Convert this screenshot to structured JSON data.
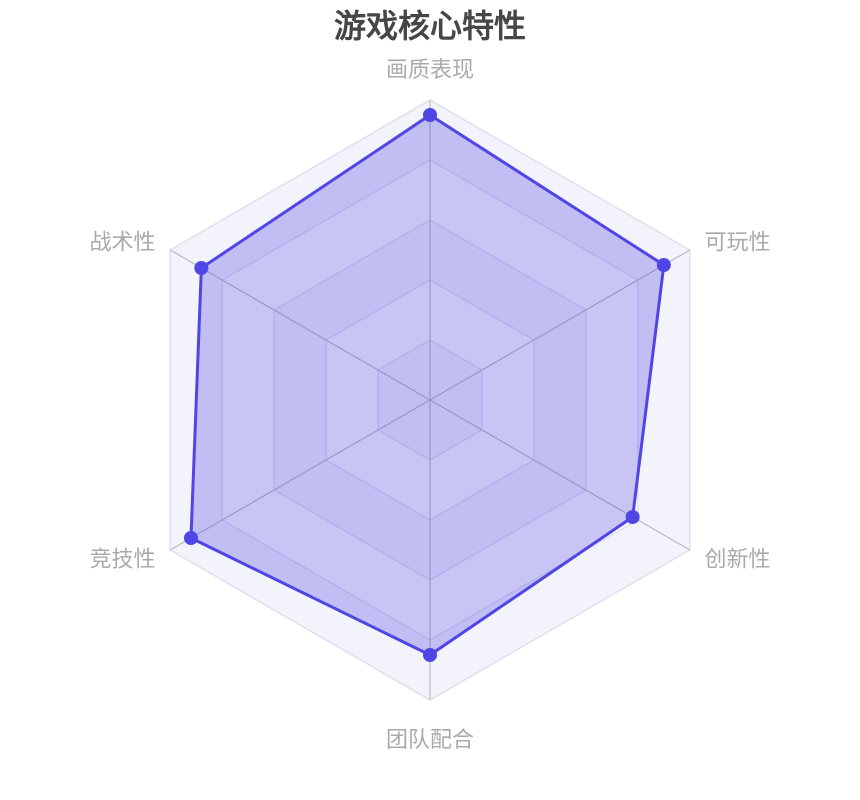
{
  "chart_data": {
    "type": "radar",
    "title": "游戏核心特性",
    "indicators": [
      "画质表现",
      "可玩性",
      "创新性",
      "团队配合",
      "竞技性",
      "战术性"
    ],
    "max": 100,
    "split_number": 5,
    "series": [
      {
        "values": [
          95,
          90,
          78,
          85,
          92,
          88
        ]
      }
    ],
    "colors": {
      "series": "#4f46e5",
      "area": "#4f46e5",
      "axis_line": "#bbbbbb",
      "split_line": "#dde0ef",
      "title": "#464646",
      "indicator_label": "#aaaaaa"
    }
  }
}
